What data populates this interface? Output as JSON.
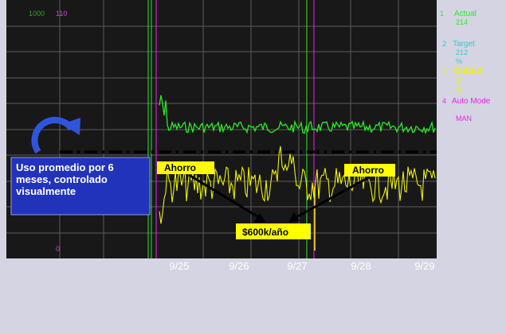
{
  "colors": {
    "frame": "#d4d4e2",
    "plot_bg": "#181818",
    "grid": "#5c5c5c",
    "actual": "#22ee22",
    "target": "#33cccc",
    "output": "#f0f000",
    "auto_mode": "#ee22ee",
    "average_line": "#000000",
    "callout_box": "#2233bb",
    "label_box": "#ffff00",
    "axis_text": "#ffffff"
  },
  "left_axis": {
    "top_text": "1000",
    "top_text_2": "110",
    "bottom_text": "0"
  },
  "legend": [
    {
      "marker": "1",
      "name": "Actual",
      "sub": [
        "214",
        ""
      ]
    },
    {
      "marker": "2",
      "name": "Target",
      "sub": [
        "212",
        "%"
      ]
    },
    {
      "marker": "3",
      "name": "Output",
      "sub": [
        "37",
        "%"
      ]
    },
    {
      "marker": "4",
      "name": "Auto Mode",
      "sub": [
        "",
        "MAN"
      ]
    }
  ],
  "annotations": {
    "callout": "Uso promedio por 6 meses, controlado visualmente",
    "ahorro_left": "Ahorro",
    "ahorro_right": "Ahorro",
    "savings": "$600k/año"
  },
  "chart_data": {
    "type": "line",
    "x_categories": [
      "9/25",
      "9/26",
      "9/27",
      "9/28",
      "9/29"
    ],
    "x_range": [
      "9/24",
      "9/29"
    ],
    "series": [
      {
        "name": "Actual",
        "color": "#22ee22",
        "start": "9/24 16:00",
        "level": "high, steady"
      },
      {
        "name": "Target",
        "color": "#33cccc"
      },
      {
        "name": "Output",
        "color": "#f0f000",
        "level": "noisy, below average line"
      },
      {
        "name": "Auto Mode",
        "color": "#ee22ee"
      }
    ],
    "average_line": true,
    "grid": true
  }
}
